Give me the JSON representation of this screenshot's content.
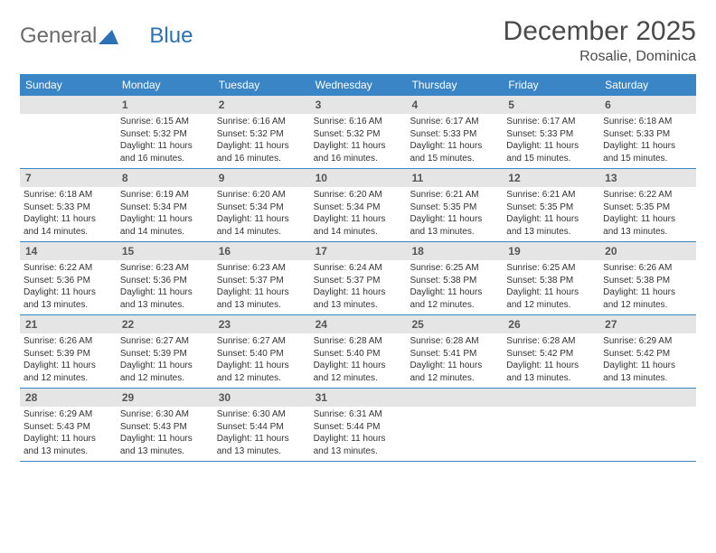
{
  "brand": {
    "part1": "General",
    "part2": "Blue"
  },
  "title": "December 2025",
  "location": "Rosalie, Dominica",
  "colors": {
    "header_bg": "#3a85c6",
    "header_text": "#ffffff",
    "daynum_bg": "#e5e5e5",
    "week_border": "#3a85c6",
    "body_text": "#333333",
    "title_text": "#4a4a4a",
    "logo_gray": "#6b6b6b",
    "logo_blue": "#2a72b5"
  },
  "dayHeaders": [
    "Sunday",
    "Monday",
    "Tuesday",
    "Wednesday",
    "Thursday",
    "Friday",
    "Saturday"
  ],
  "weeks": [
    [
      {
        "day": "",
        "sunrise": "",
        "sunset": "",
        "daylight": ""
      },
      {
        "day": "1",
        "sunrise": "Sunrise: 6:15 AM",
        "sunset": "Sunset: 5:32 PM",
        "daylight": "Daylight: 11 hours and 16 minutes."
      },
      {
        "day": "2",
        "sunrise": "Sunrise: 6:16 AM",
        "sunset": "Sunset: 5:32 PM",
        "daylight": "Daylight: 11 hours and 16 minutes."
      },
      {
        "day": "3",
        "sunrise": "Sunrise: 6:16 AM",
        "sunset": "Sunset: 5:32 PM",
        "daylight": "Daylight: 11 hours and 16 minutes."
      },
      {
        "day": "4",
        "sunrise": "Sunrise: 6:17 AM",
        "sunset": "Sunset: 5:33 PM",
        "daylight": "Daylight: 11 hours and 15 minutes."
      },
      {
        "day": "5",
        "sunrise": "Sunrise: 6:17 AM",
        "sunset": "Sunset: 5:33 PM",
        "daylight": "Daylight: 11 hours and 15 minutes."
      },
      {
        "day": "6",
        "sunrise": "Sunrise: 6:18 AM",
        "sunset": "Sunset: 5:33 PM",
        "daylight": "Daylight: 11 hours and 15 minutes."
      }
    ],
    [
      {
        "day": "7",
        "sunrise": "Sunrise: 6:18 AM",
        "sunset": "Sunset: 5:33 PM",
        "daylight": "Daylight: 11 hours and 14 minutes."
      },
      {
        "day": "8",
        "sunrise": "Sunrise: 6:19 AM",
        "sunset": "Sunset: 5:34 PM",
        "daylight": "Daylight: 11 hours and 14 minutes."
      },
      {
        "day": "9",
        "sunrise": "Sunrise: 6:20 AM",
        "sunset": "Sunset: 5:34 PM",
        "daylight": "Daylight: 11 hours and 14 minutes."
      },
      {
        "day": "10",
        "sunrise": "Sunrise: 6:20 AM",
        "sunset": "Sunset: 5:34 PM",
        "daylight": "Daylight: 11 hours and 14 minutes."
      },
      {
        "day": "11",
        "sunrise": "Sunrise: 6:21 AM",
        "sunset": "Sunset: 5:35 PM",
        "daylight": "Daylight: 11 hours and 13 minutes."
      },
      {
        "day": "12",
        "sunrise": "Sunrise: 6:21 AM",
        "sunset": "Sunset: 5:35 PM",
        "daylight": "Daylight: 11 hours and 13 minutes."
      },
      {
        "day": "13",
        "sunrise": "Sunrise: 6:22 AM",
        "sunset": "Sunset: 5:35 PM",
        "daylight": "Daylight: 11 hours and 13 minutes."
      }
    ],
    [
      {
        "day": "14",
        "sunrise": "Sunrise: 6:22 AM",
        "sunset": "Sunset: 5:36 PM",
        "daylight": "Daylight: 11 hours and 13 minutes."
      },
      {
        "day": "15",
        "sunrise": "Sunrise: 6:23 AM",
        "sunset": "Sunset: 5:36 PM",
        "daylight": "Daylight: 11 hours and 13 minutes."
      },
      {
        "day": "16",
        "sunrise": "Sunrise: 6:23 AM",
        "sunset": "Sunset: 5:37 PM",
        "daylight": "Daylight: 11 hours and 13 minutes."
      },
      {
        "day": "17",
        "sunrise": "Sunrise: 6:24 AM",
        "sunset": "Sunset: 5:37 PM",
        "daylight": "Daylight: 11 hours and 13 minutes."
      },
      {
        "day": "18",
        "sunrise": "Sunrise: 6:25 AM",
        "sunset": "Sunset: 5:38 PM",
        "daylight": "Daylight: 11 hours and 12 minutes."
      },
      {
        "day": "19",
        "sunrise": "Sunrise: 6:25 AM",
        "sunset": "Sunset: 5:38 PM",
        "daylight": "Daylight: 11 hours and 12 minutes."
      },
      {
        "day": "20",
        "sunrise": "Sunrise: 6:26 AM",
        "sunset": "Sunset: 5:38 PM",
        "daylight": "Daylight: 11 hours and 12 minutes."
      }
    ],
    [
      {
        "day": "21",
        "sunrise": "Sunrise: 6:26 AM",
        "sunset": "Sunset: 5:39 PM",
        "daylight": "Daylight: 11 hours and 12 minutes."
      },
      {
        "day": "22",
        "sunrise": "Sunrise: 6:27 AM",
        "sunset": "Sunset: 5:39 PM",
        "daylight": "Daylight: 11 hours and 12 minutes."
      },
      {
        "day": "23",
        "sunrise": "Sunrise: 6:27 AM",
        "sunset": "Sunset: 5:40 PM",
        "daylight": "Daylight: 11 hours and 12 minutes."
      },
      {
        "day": "24",
        "sunrise": "Sunrise: 6:28 AM",
        "sunset": "Sunset: 5:40 PM",
        "daylight": "Daylight: 11 hours and 12 minutes."
      },
      {
        "day": "25",
        "sunrise": "Sunrise: 6:28 AM",
        "sunset": "Sunset: 5:41 PM",
        "daylight": "Daylight: 11 hours and 12 minutes."
      },
      {
        "day": "26",
        "sunrise": "Sunrise: 6:28 AM",
        "sunset": "Sunset: 5:42 PM",
        "daylight": "Daylight: 11 hours and 13 minutes."
      },
      {
        "day": "27",
        "sunrise": "Sunrise: 6:29 AM",
        "sunset": "Sunset: 5:42 PM",
        "daylight": "Daylight: 11 hours and 13 minutes."
      }
    ],
    [
      {
        "day": "28",
        "sunrise": "Sunrise: 6:29 AM",
        "sunset": "Sunset: 5:43 PM",
        "daylight": "Daylight: 11 hours and 13 minutes."
      },
      {
        "day": "29",
        "sunrise": "Sunrise: 6:30 AM",
        "sunset": "Sunset: 5:43 PM",
        "daylight": "Daylight: 11 hours and 13 minutes."
      },
      {
        "day": "30",
        "sunrise": "Sunrise: 6:30 AM",
        "sunset": "Sunset: 5:44 PM",
        "daylight": "Daylight: 11 hours and 13 minutes."
      },
      {
        "day": "31",
        "sunrise": "Sunrise: 6:31 AM",
        "sunset": "Sunset: 5:44 PM",
        "daylight": "Daylight: 11 hours and 13 minutes."
      },
      {
        "day": "",
        "sunrise": "",
        "sunset": "",
        "daylight": ""
      },
      {
        "day": "",
        "sunrise": "",
        "sunset": "",
        "daylight": ""
      },
      {
        "day": "",
        "sunrise": "",
        "sunset": "",
        "daylight": ""
      }
    ]
  ]
}
